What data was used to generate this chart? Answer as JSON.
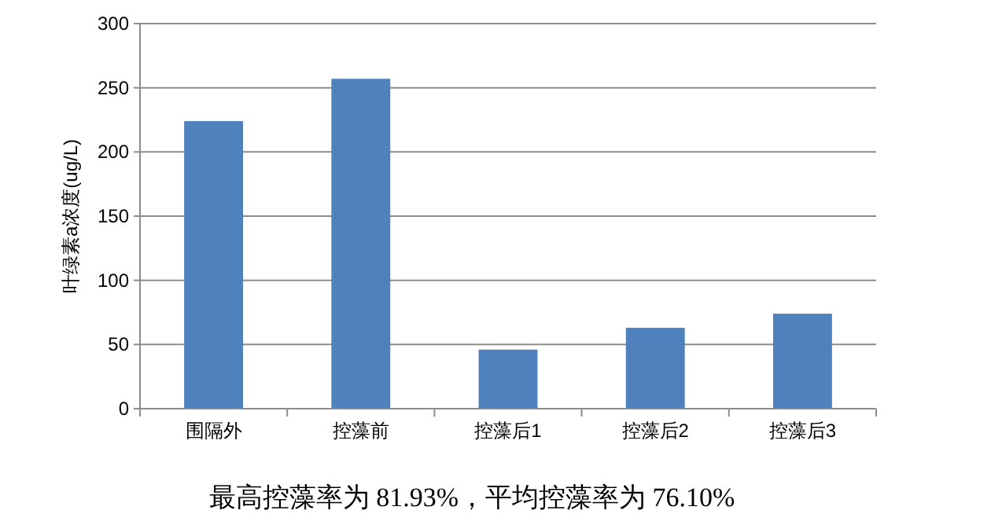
{
  "chart_data": {
    "type": "bar",
    "ylabel": "叶绿素a浓度(ug/L)",
    "categories": [
      "围隔外",
      "控藻前",
      "控藻后1",
      "控藻后2",
      "控藻后3"
    ],
    "values": [
      224,
      257,
      46,
      63,
      74
    ],
    "color": "#4f81bd",
    "ylim": [
      0,
      300
    ],
    "yticks": [
      0,
      50,
      100,
      150,
      200,
      250,
      300
    ],
    "grid": "y",
    "annotations": [
      "最高控藻率为 81.93%，平均控藻率为 76.10%"
    ]
  }
}
